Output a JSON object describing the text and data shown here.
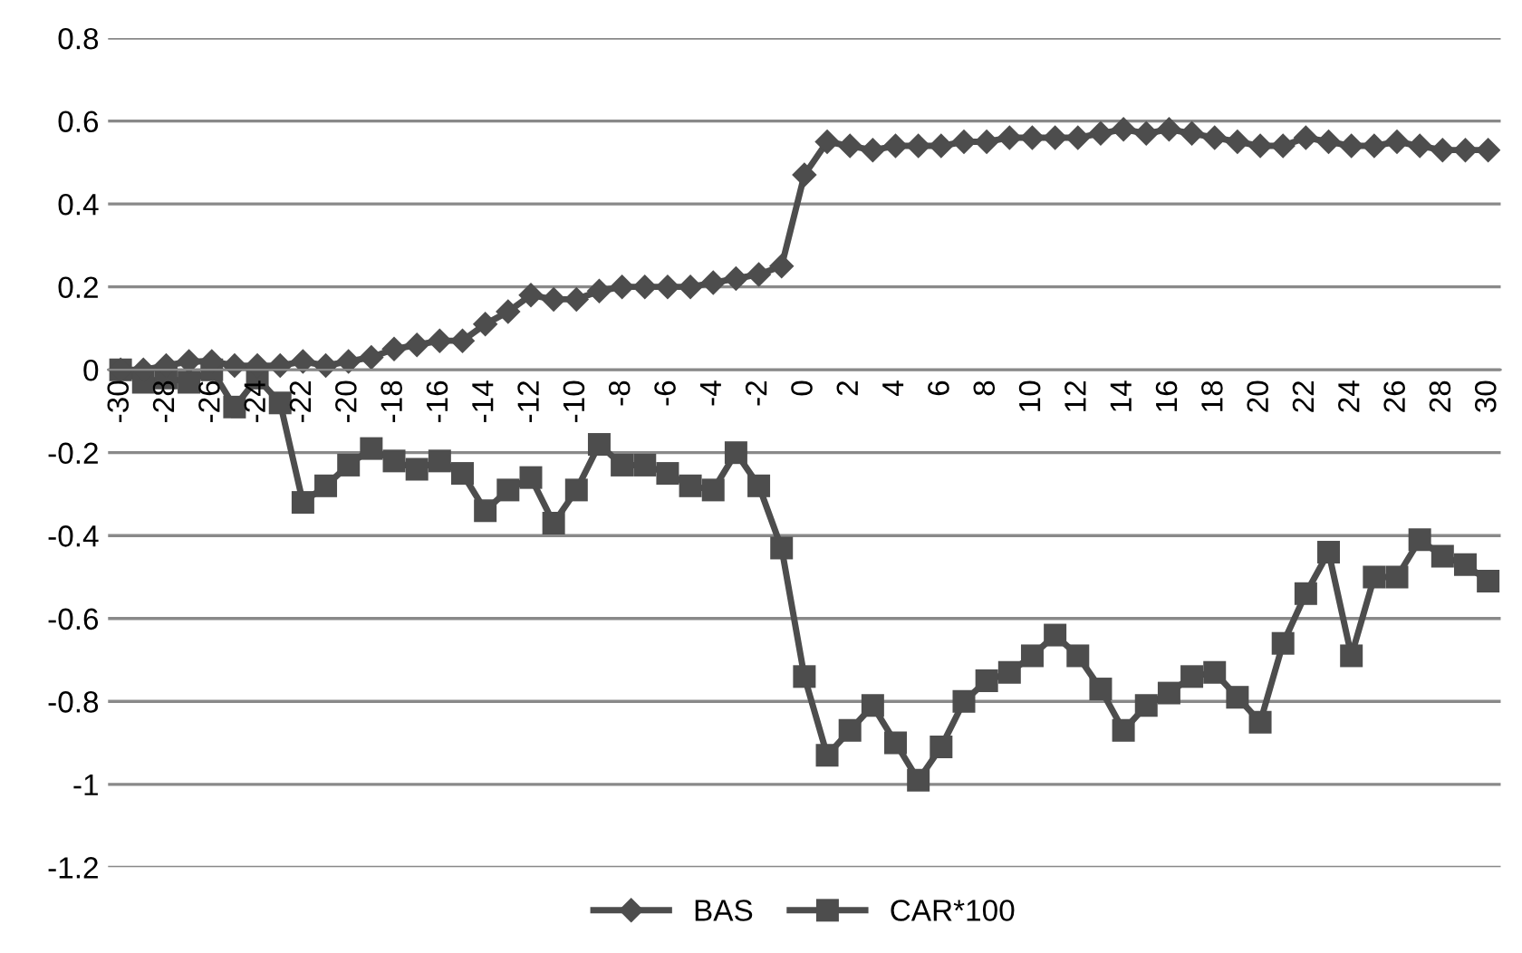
{
  "chart_data": {
    "type": "line",
    "categories": [
      "-30",
      null,
      "-28",
      null,
      "-26",
      null,
      "-24",
      null,
      "-22",
      null,
      "-20",
      null,
      "-18",
      null,
      "-16",
      null,
      "-14",
      null,
      "-12",
      null,
      "-10",
      null,
      "-8",
      null,
      "-6",
      null,
      "-4",
      null,
      "-2",
      null,
      "0",
      null,
      "2",
      null,
      "4",
      null,
      "6",
      null,
      "8",
      null,
      "10",
      null,
      "12",
      null,
      "14",
      null,
      "16",
      null,
      "18",
      null,
      "20",
      null,
      "22",
      null,
      "24",
      null,
      "26",
      null,
      "28",
      null,
      "30"
    ],
    "series": [
      {
        "name": "BAS",
        "color": "#4d4d4d",
        "marker": "diamond",
        "values": [
          0,
          0,
          0.01,
          0.02,
          0.02,
          0.01,
          0.01,
          0.01,
          0.02,
          0.01,
          0.02,
          0.03,
          0.05,
          0.06,
          0.07,
          0.07,
          0.11,
          0.14,
          0.18,
          0.17,
          0.17,
          0.19,
          0.2,
          0.2,
          0.2,
          0.2,
          0.21,
          0.22,
          0.23,
          0.25,
          0.47,
          0.55,
          0.54,
          0.53,
          0.54,
          0.54,
          0.54,
          0.55,
          0.55,
          0.56,
          0.56,
          0.56,
          0.56,
          0.57,
          0.58,
          0.57,
          0.58,
          0.57,
          0.56,
          0.55,
          0.54,
          0.54,
          0.56,
          0.55,
          0.54,
          0.54,
          0.55,
          0.54,
          0.53,
          0.53,
          0.53
        ]
      },
      {
        "name": "CAR*100",
        "color": "#4d4d4d",
        "marker": "square",
        "values": [
          0,
          -0.03,
          -0.02,
          -0.03,
          0,
          -0.09,
          -0.02,
          -0.08,
          -0.32,
          -0.28,
          -0.23,
          -0.19,
          -0.22,
          -0.24,
          -0.22,
          -0.25,
          -0.34,
          -0.29,
          -0.26,
          -0.37,
          -0.29,
          -0.18,
          -0.23,
          -0.23,
          -0.25,
          -0.28,
          -0.29,
          -0.2,
          -0.28,
          -0.43,
          -0.74,
          -0.93,
          -0.87,
          -0.81,
          -0.9,
          -0.99,
          -0.91,
          -0.8,
          -0.75,
          -0.73,
          -0.69,
          -0.64,
          -0.69,
          -0.77,
          -0.87,
          -0.81,
          -0.78,
          -0.74,
          -0.73,
          -0.79,
          -0.85,
          -0.66,
          -0.54,
          -0.44,
          -0.69,
          -0.5,
          -0.5,
          -0.41,
          -0.45,
          -0.47,
          -0.51
        ]
      }
    ],
    "ylim": [
      -1.2,
      0.8
    ],
    "yticks": [
      -1.2,
      -1,
      -0.8,
      -0.6,
      -0.4,
      -0.2,
      0,
      0.2,
      0.4,
      0.6,
      0.8
    ],
    "grid": "y",
    "legend": "bottom"
  }
}
